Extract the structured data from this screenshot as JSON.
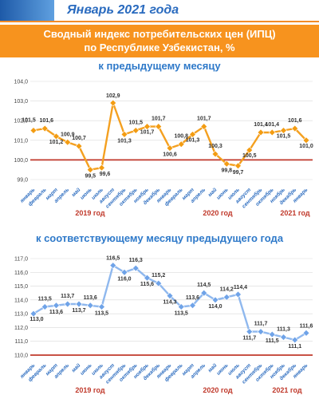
{
  "header": {
    "title": "Январь 2021 года"
  },
  "banner": {
    "line1": "Сводный индекс потребительских цен (ИПЦ)",
    "line2": "по Республике Узбекистан, %"
  },
  "chart_data": [
    {
      "type": "line",
      "title": "к предыдущему месяцу",
      "categories": [
        "январь",
        "февраль",
        "март",
        "апрель",
        "май",
        "июнь",
        "июль",
        "август",
        "сентябрь",
        "октябрь",
        "ноябрь",
        "декабрь",
        "январь",
        "февраль",
        "март",
        "апрель",
        "май",
        "июнь",
        "июль",
        "август",
        "сентябрь",
        "октябрь",
        "ноябрь",
        "декабрь",
        "январь"
      ],
      "values": [
        101.5,
        101.6,
        101.2,
        100.9,
        100.7,
        99.5,
        99.6,
        102.9,
        101.3,
        101.5,
        101.7,
        101.7,
        100.6,
        100.8,
        101.3,
        101.7,
        100.3,
        99.8,
        99.7,
        100.5,
        101.4,
        101.4,
        101.5,
        101.6,
        101.0
      ],
      "value_labels": [
        "101,5",
        "101,6",
        "101,2",
        "100,9",
        "100,7",
        "99,5",
        "99,6",
        "102,9",
        "101,3",
        "101,5",
        "101,7",
        "101,7",
        "100,6",
        "100,8",
        "101,3",
        "101,7",
        "100,3",
        "99,8",
        "99,7",
        "100,5",
        "101,4",
        "101,4",
        "101,5",
        "101,6",
        "101,0"
      ],
      "ylim": [
        99.0,
        104.0
      ],
      "yticks": [
        "99,0",
        "100,0",
        "101,0",
        "102,0",
        "103,0",
        "104,0"
      ],
      "baseline": 100.0,
      "years": [
        "2019 год",
        "2020 год",
        "2021 год"
      ],
      "grid": true
    },
    {
      "type": "line",
      "title": "к соответствующему месяцу предыдущего года",
      "categories": [
        "январь",
        "февраль",
        "март",
        "апрель",
        "май",
        "июнь",
        "июль",
        "август",
        "сентябрь",
        "октябрь",
        "ноябрь",
        "декабрь",
        "январь",
        "февраль",
        "март",
        "апрель",
        "май",
        "июнь",
        "июль",
        "август",
        "сентябрь",
        "октябрь",
        "ноябрь",
        "декабрь",
        "январь"
      ],
      "values": [
        113.0,
        113.5,
        113.6,
        113.7,
        113.7,
        113.6,
        113.5,
        116.5,
        116.0,
        116.3,
        115.6,
        115.2,
        114.3,
        113.5,
        113.6,
        114.5,
        114.0,
        114.2,
        114.4,
        111.7,
        111.7,
        111.5,
        111.3,
        111.1,
        111.6
      ],
      "value_labels": [
        "113,0",
        "113,5",
        "113,6",
        "113,7",
        "113,7",
        "113,6",
        "113,5",
        "116,5",
        "116,0",
        "116,3",
        "115,6",
        "115,2",
        "114,3",
        "113,5",
        "113,6",
        "114,5",
        "114,0",
        "114,2",
        "114,4",
        "111,7",
        "111,7",
        "111,5",
        "111,3",
        "111,1",
        "111,6"
      ],
      "ylim": [
        110.0,
        117.0
      ],
      "yticks": [
        "110,0",
        "111,0",
        "112,0",
        "113,0",
        "114,0",
        "115,0",
        "116,0",
        "117,0"
      ],
      "baseline": 110.0,
      "years": [
        "2019 год",
        "2020 год",
        "2021 год"
      ],
      "grid": true
    }
  ],
  "colors": {
    "accent": "#f7931e",
    "line1": "#f4a020",
    "line2": "#8fb8ee",
    "marker1": "#f39c12",
    "marker2": "#6fa3e8",
    "baseline": "#c0392b"
  }
}
